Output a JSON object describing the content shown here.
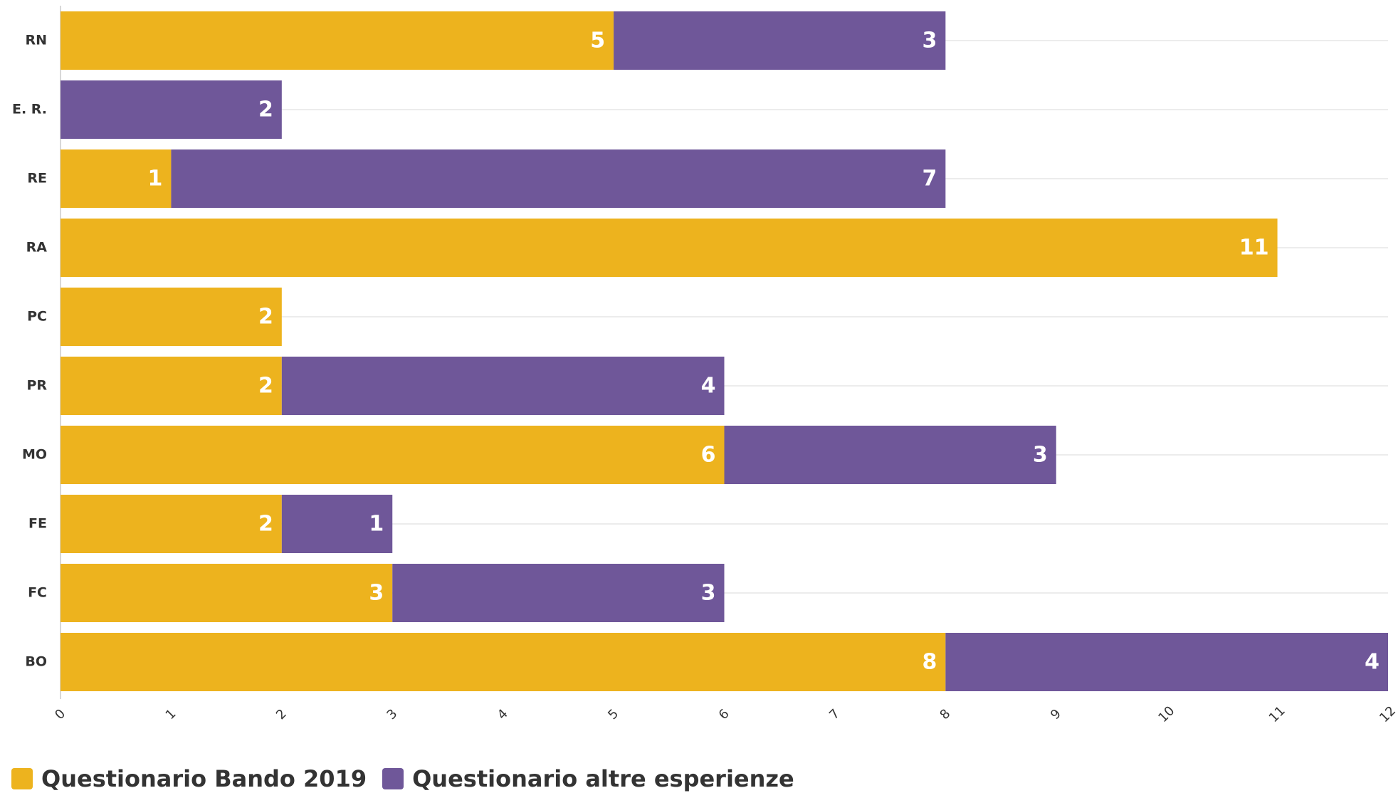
{
  "chart_data": {
    "type": "bar",
    "orientation": "horizontal",
    "stacked": true,
    "categories": [
      "RN",
      "E. R.",
      "RE",
      "RA",
      "PC",
      "PR",
      "MO",
      "FE",
      "FC",
      "BO"
    ],
    "series": [
      {
        "name": "Questionario Bando 2019",
        "color": "#EDB31E",
        "values": [
          5,
          0,
          1,
          11,
          2,
          2,
          6,
          2,
          3,
          8
        ]
      },
      {
        "name": "Questionario altre esperienze",
        "color": "#6F5799",
        "values": [
          3,
          2,
          7,
          0,
          0,
          4,
          3,
          1,
          3,
          4
        ]
      }
    ],
    "xlim": [
      0,
      12
    ],
    "xticks": [
      0,
      1,
      2,
      3,
      4,
      5,
      6,
      7,
      8,
      9,
      10,
      11,
      12
    ],
    "grid": true,
    "legend_position": "bottom-left",
    "data_labels": true
  }
}
